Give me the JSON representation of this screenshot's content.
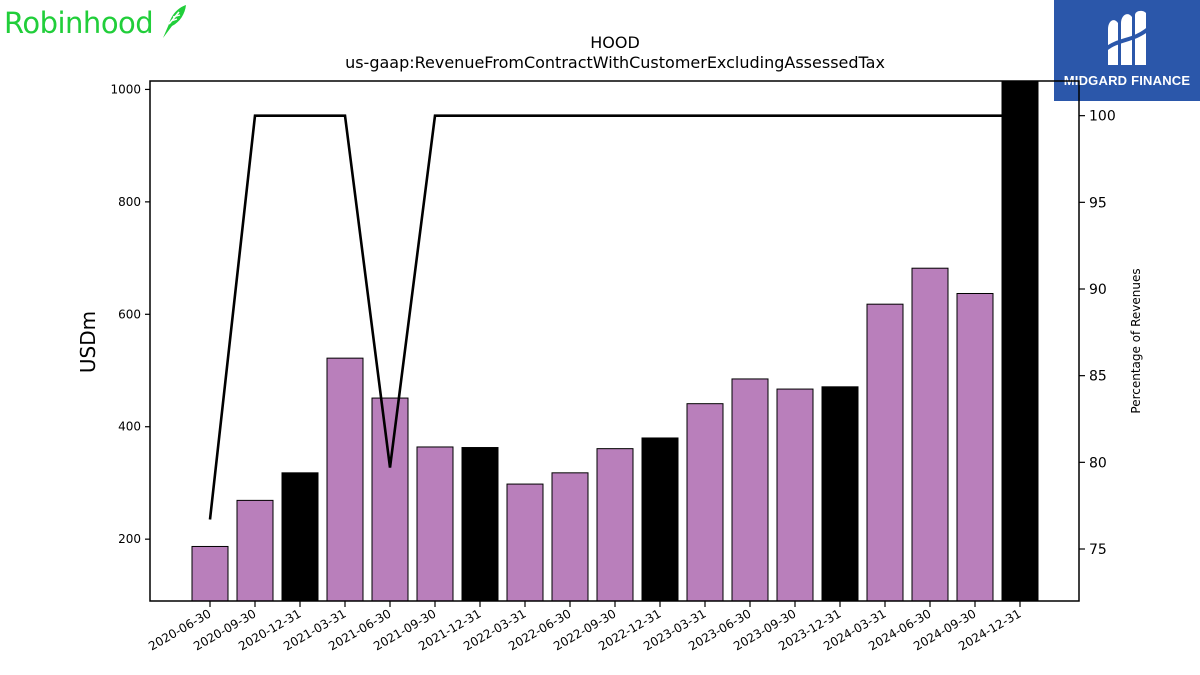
{
  "brand_left": {
    "name": "Robinhood",
    "icon": "feather-icon",
    "color": "#21ce3a"
  },
  "brand_right": {
    "name": "MIDGARD FINANCE",
    "icon": "midgard-logo-icon",
    "background": "#2b57aa"
  },
  "chart_data": {
    "type": "bar",
    "title": "HOOD",
    "subtitle": "us-gaap:RevenueFromContractWithCustomerExcludingAssessedTax",
    "ylabel": "USDm",
    "y2label": "Percentage of Revenues",
    "ylim": [
      90,
      1015
    ],
    "y2lim": [
      72,
      102
    ],
    "yticks": [
      200,
      400,
      600,
      800,
      1000
    ],
    "y2ticks": [
      75,
      80,
      85,
      90,
      95,
      100
    ],
    "categories": [
      "2020-06-30",
      "2020-09-30",
      "2020-12-31",
      "2021-03-31",
      "2021-06-30",
      "2021-09-30",
      "2021-12-31",
      "2022-03-31",
      "2022-06-30",
      "2022-09-30",
      "2022-12-31",
      "2023-03-31",
      "2023-06-30",
      "2023-09-30",
      "2023-12-31",
      "2024-03-31",
      "2024-06-30",
      "2024-09-30",
      "2024-12-31"
    ],
    "series": [
      {
        "type": "bar",
        "axis": "left",
        "values": [
          187,
          269,
          318,
          522,
          451,
          364,
          363,
          298,
          318,
          361,
          380,
          441,
          485,
          467,
          471,
          618,
          682,
          637,
          1014
        ],
        "colors": [
          "#b97fbb",
          "#b97fbb",
          "#000000",
          "#b97fbb",
          "#b97fbb",
          "#b97fbb",
          "#000000",
          "#b97fbb",
          "#b97fbb",
          "#b97fbb",
          "#000000",
          "#b97fbb",
          "#b97fbb",
          "#b97fbb",
          "#000000",
          "#b97fbb",
          "#b97fbb",
          "#b97fbb",
          "#000000"
        ]
      },
      {
        "type": "line",
        "axis": "right",
        "color": "#000000",
        "values": [
          76.7,
          100,
          100,
          100,
          79.7,
          100,
          100,
          100,
          100,
          100,
          100,
          100,
          100,
          100,
          100,
          100,
          100,
          100,
          100
        ]
      }
    ],
    "grid": false
  }
}
